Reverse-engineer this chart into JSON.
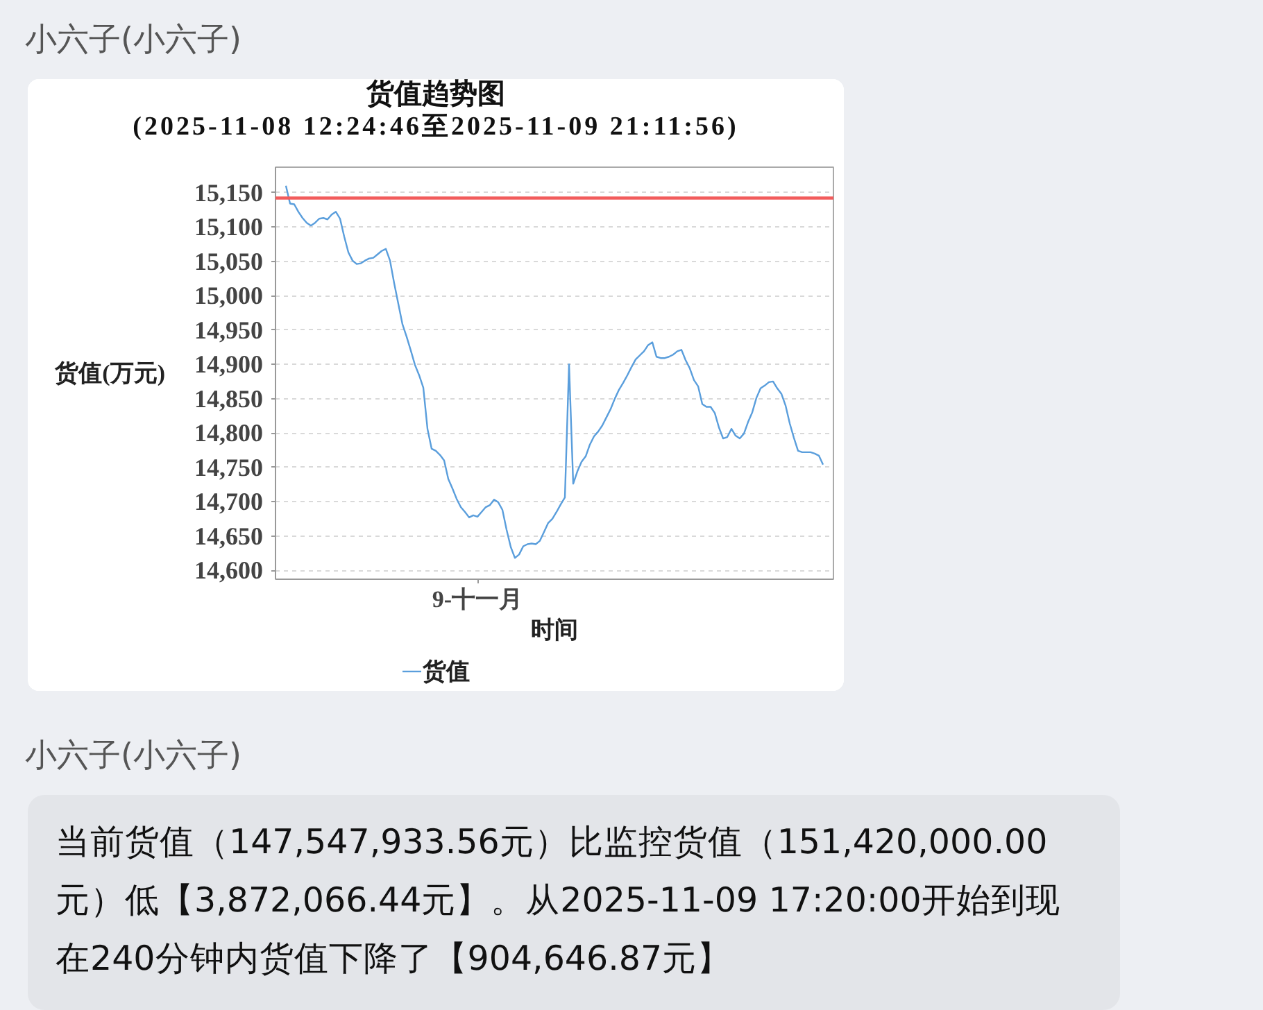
{
  "chart_data": {
    "type": "line",
    "title": "货值趋势图",
    "subtitle": "(2025-11-08 12:24:46至2025-11-09 21:11:56)",
    "xlabel": "时间",
    "ylabel": "货值(万元)",
    "categories": [
      null,
      null,
      null,
      null,
      null,
      null,
      null,
      null,
      null,
      null,
      null,
      null,
      null,
      null,
      null,
      null,
      null,
      null,
      null,
      null,
      null,
      null,
      null,
      null,
      null,
      null,
      null,
      null,
      null,
      null,
      null,
      null,
      null,
      null,
      null,
      null,
      null,
      null,
      null,
      null,
      null,
      null,
      null,
      null,
      null,
      null,
      "9-十一月",
      null,
      null,
      null,
      null,
      null,
      null,
      null,
      null,
      null,
      null,
      null,
      null,
      null,
      null,
      null,
      null,
      null,
      null,
      null,
      null,
      null,
      null,
      null,
      null,
      null,
      null,
      null,
      null,
      null,
      null,
      null,
      null,
      null,
      null,
      null,
      null,
      null,
      null,
      null,
      null,
      null,
      null,
      null,
      null,
      null,
      null,
      null,
      null,
      null,
      null,
      null,
      null,
      null,
      null,
      null,
      null,
      null,
      null,
      null,
      null,
      null,
      null,
      null,
      null,
      null,
      null,
      null,
      null,
      null,
      null,
      null,
      null,
      null,
      null,
      null,
      null,
      null,
      null,
      null,
      null,
      null,
      null,
      null
    ],
    "series": [
      {
        "name": "货值",
        "color": "#5a9edc",
        "values": [
          15160,
          15134,
          15133,
          15122,
          15113,
          15106,
          15102,
          15106,
          15112,
          15113,
          15111,
          15118,
          15122,
          15112,
          15086,
          15063,
          15051,
          15046,
          15047,
          15051,
          15054,
          15055,
          15060,
          15065,
          15068,
          15051,
          15018,
          14988,
          14958,
          14940,
          14920,
          14899,
          14884,
          14866,
          14806,
          14777,
          14774,
          14768,
          14760,
          14733,
          14719,
          14704,
          14692,
          14685,
          14677,
          14680,
          14678,
          14685,
          14692,
          14695,
          14703,
          14699,
          14688,
          14659,
          14634,
          14618,
          14623,
          14635,
          14638,
          14639,
          14638,
          14643,
          14656,
          14669,
          14675,
          14685,
          14696,
          14706,
          14900,
          14726,
          14744,
          14758,
          14766,
          14783,
          14795,
          14802,
          14811,
          14823,
          14835,
          14850,
          14863,
          14873,
          14884,
          14896,
          14907,
          14913,
          14919,
          14928,
          14932,
          14911,
          14909,
          14909,
          14911,
          14914,
          14919,
          14921,
          14906,
          14894,
          14877,
          14868,
          14842,
          14838,
          14838,
          14829,
          14808,
          14792,
          14794,
          14806,
          14796,
          14792,
          14799,
          14816,
          14830,
          14851,
          14865,
          14869,
          14874,
          14875,
          14865,
          14857,
          14840,
          14814,
          14793,
          14774,
          14772,
          14772,
          14772,
          14770,
          14767,
          14754
        ]
      }
    ],
    "ylim": [
      14587,
      15187
    ],
    "yticks": [
      {
        "value": 14600,
        "label": "14,600"
      },
      {
        "value": 14650,
        "label": "14,650"
      },
      {
        "value": 14700,
        "label": "14,700"
      },
      {
        "value": 14750,
        "label": "14,750"
      },
      {
        "value": 14800,
        "label": "14,800"
      },
      {
        "value": 14850,
        "label": "14,850"
      },
      {
        "value": 14900,
        "label": "14,900"
      },
      {
        "value": 14950,
        "label": "14,950"
      },
      {
        "value": 15000,
        "label": "15,000"
      },
      {
        "value": 15050,
        "label": "15,050"
      },
      {
        "value": 15100,
        "label": "15,100"
      },
      {
        "value": 15150,
        "label": "15,150"
      }
    ],
    "ref_lines": [
      {
        "axis": "y",
        "value": 15142,
        "color": "#f25c5c"
      }
    ],
    "grid": "y",
    "legend": "bottom",
    "annotations": [
      "小六子(小六子)",
      "小六子(小六子)",
      "当前货值（147,547,933.56元）比监控货值（151,420,000.00元）低【3,872,066.44元】。从2025-11-09 17:20:00开始到现在240分钟内货值下降了【904,646.87元】"
    ]
  }
}
